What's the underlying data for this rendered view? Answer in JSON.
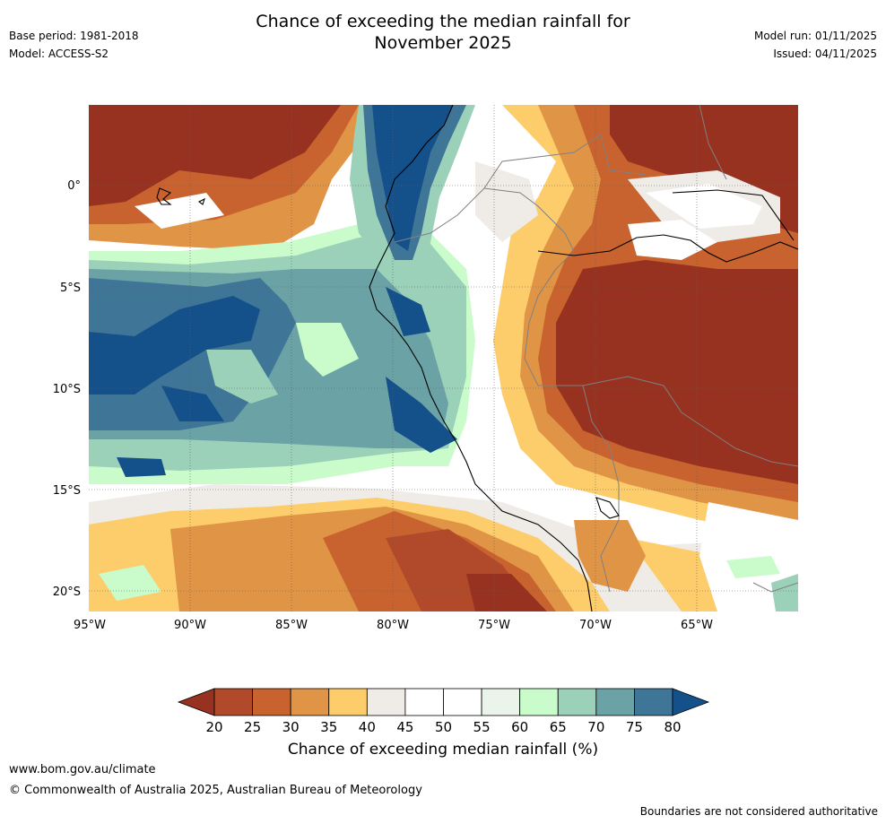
{
  "header": {
    "title_line1": "Chance of exceeding the median rainfall for",
    "title_line2": "November 2025",
    "base_period": "Base period: 1981-2018",
    "model": "Model: ACCESS-S2",
    "model_run": "Model run: 01/11/2025",
    "issued": "Issued: 04/11/2025"
  },
  "map": {
    "lat_labels": [
      "0°",
      "5°S",
      "10°S",
      "15°S",
      "20°S"
    ],
    "lon_labels": [
      "95°W",
      "90°W",
      "85°W",
      "80°W",
      "75°W",
      "70°W",
      "65°W"
    ],
    "colors": {
      "ocean_background": "#9bd0b9",
      "dry_strong": "#96321f",
      "wet_strong": "#14508a",
      "coastline": "#000000",
      "border": "#808080"
    }
  },
  "colorbar": {
    "ticks": [
      "20",
      "25",
      "30",
      "35",
      "40",
      "45",
      "50",
      "55",
      "60",
      "65",
      "70",
      "75",
      "80"
    ],
    "colors": [
      "#96321f",
      "#b04a2a",
      "#c8632f",
      "#e09445",
      "#fdcc6b",
      "#efebe7",
      "#ffffff",
      "#ffffff",
      "#eaf4ea",
      "#c9fbcb",
      "#9bd0b9",
      "#6aa2a5",
      "#3f7596",
      "#14508a"
    ],
    "label": "Chance of exceeding median rainfall (%)"
  },
  "footer": {
    "url": "www.bom.gov.au/climate",
    "copyright": "© Commonwealth of Australia 2025, Australian Bureau of Meteorology",
    "note": "Boundaries are not considered authoritative"
  }
}
